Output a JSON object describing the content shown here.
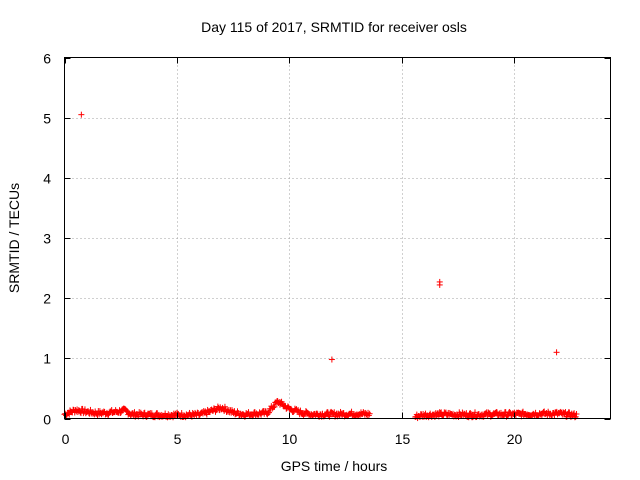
{
  "chart_data": {
    "type": "scatter",
    "title": "Day 115 of 2017, SRMTID for receiver osls",
    "xlabel": "GPS time / hours",
    "ylabel": "SRMTID / TECUs",
    "xlim": [
      0,
      24.3
    ],
    "ylim": [
      0,
      6
    ],
    "x_ticks": [
      "0",
      "5",
      "10",
      "15",
      "20"
    ],
    "y_ticks": [
      "0",
      "1",
      "2",
      "3",
      "4",
      "5",
      "6"
    ],
    "grid": true,
    "marker": "+",
    "color": "#ff0000",
    "outliers": [
      {
        "x": 0.75,
        "y": 5.05
      },
      {
        "x": 11.9,
        "y": 0.98
      },
      {
        "x": 16.7,
        "y": 2.27
      },
      {
        "x": 16.7,
        "y": 2.22
      },
      {
        "x": 21.9,
        "y": 1.1
      }
    ],
    "data_gap_hours": [
      13.6,
      15.6
    ],
    "baseline_profile": [
      {
        "x": 0.0,
        "y": 0.07
      },
      {
        "x": 0.5,
        "y": 0.14
      },
      {
        "x": 1.0,
        "y": 0.11
      },
      {
        "x": 1.5,
        "y": 0.09
      },
      {
        "x": 2.0,
        "y": 0.1
      },
      {
        "x": 2.7,
        "y": 0.13
      },
      {
        "x": 3.0,
        "y": 0.07
      },
      {
        "x": 4.0,
        "y": 0.06
      },
      {
        "x": 5.0,
        "y": 0.06
      },
      {
        "x": 6.0,
        "y": 0.06
      },
      {
        "x": 7.0,
        "y": 0.18
      },
      {
        "x": 7.5,
        "y": 0.1
      },
      {
        "x": 8.0,
        "y": 0.07
      },
      {
        "x": 9.0,
        "y": 0.09
      },
      {
        "x": 9.5,
        "y": 0.28
      },
      {
        "x": 10.0,
        "y": 0.16
      },
      {
        "x": 10.5,
        "y": 0.1
      },
      {
        "x": 11.0,
        "y": 0.07
      },
      {
        "x": 12.0,
        "y": 0.07
      },
      {
        "x": 13.0,
        "y": 0.08
      },
      {
        "x": 13.6,
        "y": 0.07
      },
      {
        "x": 15.6,
        "y": 0.03
      },
      {
        "x": 16.0,
        "y": 0.06
      },
      {
        "x": 17.0,
        "y": 0.07
      },
      {
        "x": 18.0,
        "y": 0.06
      },
      {
        "x": 19.0,
        "y": 0.07
      },
      {
        "x": 20.0,
        "y": 0.07
      },
      {
        "x": 21.0,
        "y": 0.08
      },
      {
        "x": 22.0,
        "y": 0.08
      },
      {
        "x": 22.8,
        "y": 0.05
      }
    ]
  }
}
